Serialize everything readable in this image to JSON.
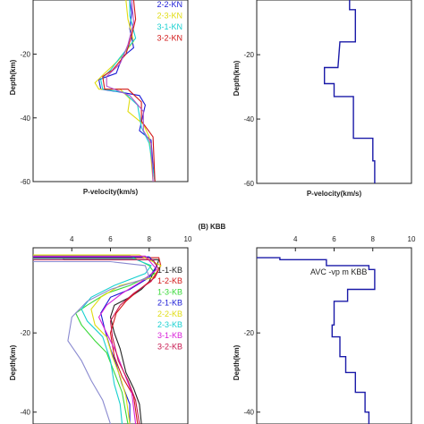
{
  "section_label": "(B) KBB",
  "chart_data": [
    {
      "type": "line",
      "panel": "top-left",
      "xlabel": "P-velocity(km/s)",
      "ylabel": "Depth(km)",
      "ylim": [
        -60,
        -3
      ],
      "xlim": [
        2,
        10
      ],
      "y_ticks": [
        "-20",
        "-40",
        "-60"
      ],
      "legend": [
        "2-2-KN",
        "2-3-KN",
        "3-1-KN",
        "3-2-KN"
      ],
      "series": [
        {
          "name": "2-2-KN",
          "color": "#1a1ad6",
          "points": [
            [
              7.0,
              -3
            ],
            [
              7.1,
              -7
            ],
            [
              7.0,
              -12
            ],
            [
              7.2,
              -18
            ],
            [
              6.6,
              -21
            ],
            [
              6.3,
              -26
            ],
            [
              5.4,
              -28
            ],
            [
              5.5,
              -31
            ],
            [
              6.6,
              -32
            ],
            [
              7.5,
              -33
            ],
            [
              7.8,
              -36
            ],
            [
              7.5,
              -44
            ],
            [
              8.1,
              -47
            ],
            [
              8.2,
              -55
            ],
            [
              8.3,
              -60
            ]
          ]
        },
        {
          "name": "2-3-KN",
          "color": "#e0dc10",
          "points": [
            [
              6.8,
              -3
            ],
            [
              6.9,
              -9
            ],
            [
              7.2,
              -16
            ],
            [
              6.4,
              -22
            ],
            [
              5.7,
              -26
            ],
            [
              5.2,
              -29
            ],
            [
              5.4,
              -31
            ],
            [
              6.5,
              -31
            ],
            [
              7.0,
              -34
            ],
            [
              6.9,
              -38
            ],
            [
              7.7,
              -42
            ],
            [
              8.0,
              -46
            ],
            [
              8.2,
              -60
            ]
          ]
        },
        {
          "name": "3-1-KN",
          "color": "#18d0d0",
          "points": [
            [
              7.0,
              -3
            ],
            [
              7.0,
              -8
            ],
            [
              7.3,
              -15
            ],
            [
              6.5,
              -21
            ],
            [
              6.0,
              -25
            ],
            [
              5.5,
              -28
            ],
            [
              5.6,
              -31
            ],
            [
              6.7,
              -32
            ],
            [
              7.4,
              -36
            ],
            [
              7.6,
              -43
            ],
            [
              8.0,
              -48
            ],
            [
              8.3,
              -60
            ]
          ]
        },
        {
          "name": "3-2-KN",
          "color": "#d21818",
          "points": [
            [
              7.2,
              -3
            ],
            [
              7.3,
              -9
            ],
            [
              7.1,
              -14
            ],
            [
              6.8,
              -20
            ],
            [
              6.1,
              -25
            ],
            [
              5.6,
              -27
            ],
            [
              5.7,
              -31
            ],
            [
              6.9,
              -31
            ],
            [
              7.6,
              -35
            ],
            [
              7.6,
              -41
            ],
            [
              8.2,
              -46
            ],
            [
              8.3,
              -60
            ]
          ]
        },
        {
          "name": "",
          "color": "#b050c8",
          "points": [
            [
              7.1,
              -3
            ],
            [
              7.2,
              -10
            ],
            [
              6.9,
              -17
            ],
            [
              6.5,
              -23
            ],
            [
              5.8,
              -27
            ],
            [
              5.8,
              -30
            ],
            [
              7.0,
              -33
            ],
            [
              7.7,
              -38
            ],
            [
              7.7,
              -44
            ],
            [
              8.1,
              -48
            ],
            [
              8.2,
              -60
            ]
          ]
        }
      ]
    },
    {
      "type": "line",
      "panel": "top-right",
      "xlabel": "P-velocity(km/s)",
      "ylabel": "Depth(km)",
      "ylim": [
        -60,
        -3
      ],
      "xlim": [
        2,
        10
      ],
      "y_ticks": [
        "-20",
        "-40",
        "-60"
      ],
      "series": [
        {
          "name": "",
          "color": "#1a1aa8",
          "points": [
            [
              6.8,
              -3
            ],
            [
              6.8,
              -6
            ],
            [
              7.1,
              -6
            ],
            [
              7.1,
              -16
            ],
            [
              6.3,
              -16
            ],
            [
              6.2,
              -24
            ],
            [
              5.5,
              -24
            ],
            [
              5.5,
              -29
            ],
            [
              6.0,
              -29
            ],
            [
              6.0,
              -33
            ],
            [
              7.0,
              -33
            ],
            [
              7.0,
              -46
            ],
            [
              8.0,
              -46
            ],
            [
              8.0,
              -53
            ],
            [
              8.1,
              -53
            ],
            [
              8.1,
              -60
            ]
          ]
        }
      ]
    },
    {
      "type": "line",
      "panel": "bottom-left",
      "ylabel": "Depth(km)",
      "ylim": [
        -43,
        1.5
      ],
      "xlim": [
        2,
        10
      ],
      "x_ticks": [
        "4",
        "6",
        "8",
        "10"
      ],
      "y_ticks": [
        "-20",
        "-40"
      ],
      "legend": [
        "1-1-KB",
        "1-2-KB",
        "1-3-KB",
        "2-1-KB",
        "2-2-KB",
        "2-3-KB",
        "3-1-KB",
        "3-2-KB"
      ],
      "series": [
        {
          "name": "1-1-KB",
          "color": "#222222",
          "points": [
            [
              2,
              -1
            ],
            [
              3.5,
              -1
            ],
            [
              3.6,
              -1.5
            ],
            [
              8.5,
              -1.5
            ],
            [
              8.4,
              -3
            ],
            [
              8.2,
              -5
            ],
            [
              8.0,
              -7
            ],
            [
              7.6,
              -9
            ],
            [
              7.0,
              -11
            ],
            [
              6.2,
              -13
            ],
            [
              6.0,
              -16
            ],
            [
              6.2,
              -20
            ],
            [
              6.5,
              -24
            ],
            [
              6.8,
              -30
            ],
            [
              7.2,
              -34
            ],
            [
              7.5,
              -38
            ],
            [
              7.6,
              -43
            ]
          ]
        },
        {
          "name": "1-2-KB",
          "color": "#d21818",
          "points": [
            [
              2,
              -1
            ],
            [
              8.5,
              -1
            ],
            [
              8.6,
              -3
            ],
            [
              8.3,
              -6
            ],
            [
              7.5,
              -9
            ],
            [
              6.8,
              -12
            ],
            [
              6.3,
              -15
            ],
            [
              6.0,
              -20
            ],
            [
              6.2,
              -26
            ],
            [
              6.6,
              -31
            ],
            [
              7.2,
              -36
            ],
            [
              7.4,
              -43
            ]
          ]
        },
        {
          "name": "1-3-KB",
          "color": "#38d838",
          "points": [
            [
              2,
              -0.5
            ],
            [
              7.0,
              -0.5
            ],
            [
              8.0,
              -3
            ],
            [
              8.3,
              -5
            ],
            [
              7.0,
              -8
            ],
            [
              5.8,
              -10
            ],
            [
              4.8,
              -13
            ],
            [
              4.2,
              -15
            ],
            [
              4.5,
              -18
            ],
            [
              5.2,
              -22
            ],
            [
              5.8,
              -25
            ],
            [
              6.2,
              -30
            ],
            [
              6.6,
              -35
            ],
            [
              6.9,
              -43
            ]
          ]
        },
        {
          "name": "2-1-KB",
          "color": "#1a1ad6",
          "points": [
            [
              2,
              -0.8
            ],
            [
              8.0,
              -0.8
            ],
            [
              8.4,
              -3
            ],
            [
              8.0,
              -6
            ],
            [
              7.0,
              -9
            ],
            [
              6.0,
              -11
            ],
            [
              5.5,
              -15
            ],
            [
              5.7,
              -19
            ],
            [
              6.0,
              -24
            ],
            [
              6.3,
              -28
            ],
            [
              6.6,
              -33
            ],
            [
              7.0,
              -38
            ],
            [
              7.0,
              -43
            ]
          ]
        },
        {
          "name": "2-2-KB",
          "color": "#e0dc10",
          "points": [
            [
              2,
              -0.3
            ],
            [
              7.5,
              -0.3
            ],
            [
              8.6,
              -3
            ],
            [
              8.2,
              -6
            ],
            [
              6.5,
              -8
            ],
            [
              5.5,
              -11
            ],
            [
              5.0,
              -14
            ],
            [
              5.2,
              -18
            ],
            [
              5.8,
              -21
            ],
            [
              6.1,
              -26
            ],
            [
              6.5,
              -31
            ],
            [
              6.8,
              -36
            ],
            [
              7.0,
              -43
            ]
          ]
        },
        {
          "name": "2-3-KB",
          "color": "#18d0d0",
          "points": [
            [
              2,
              -1.2
            ],
            [
              7.2,
              -1.2
            ],
            [
              8.1,
              -3
            ],
            [
              7.8,
              -5
            ],
            [
              6.2,
              -8
            ],
            [
              5.0,
              -11
            ],
            [
              4.5,
              -14
            ],
            [
              4.8,
              -17
            ],
            [
              5.6,
              -21
            ],
            [
              6.0,
              -27
            ],
            [
              6.2,
              -33
            ],
            [
              6.5,
              -38
            ],
            [
              6.6,
              -43
            ]
          ]
        },
        {
          "name": "3-1-KB",
          "color": "#d820d8",
          "points": [
            [
              2,
              -0.6
            ],
            [
              7.8,
              -0.6
            ],
            [
              8.4,
              -4
            ],
            [
              7.6,
              -7
            ],
            [
              6.6,
              -10
            ],
            [
              5.8,
              -13
            ],
            [
              5.4,
              -16
            ],
            [
              5.8,
              -20
            ],
            [
              6.3,
              -25
            ],
            [
              6.7,
              -30
            ],
            [
              7.1,
              -35
            ],
            [
              7.3,
              -43
            ]
          ]
        },
        {
          "name": "3-2-KB",
          "color": "#c81850",
          "points": [
            [
              2,
              -1.5
            ],
            [
              8.2,
              -1.5
            ],
            [
              8.5,
              -4
            ],
            [
              8.1,
              -7
            ],
            [
              7.2,
              -10
            ],
            [
              6.5,
              -13
            ],
            [
              6.0,
              -17
            ],
            [
              6.1,
              -21
            ],
            [
              6.4,
              -27
            ],
            [
              6.9,
              -32
            ],
            [
              7.3,
              -37
            ],
            [
              7.5,
              -43
            ]
          ]
        },
        {
          "name": "",
          "color": "#8a8ad0",
          "points": [
            [
              2,
              -2
            ],
            [
              6.0,
              -2
            ],
            [
              7.8,
              -3
            ],
            [
              8.0,
              -6
            ],
            [
              6.0,
              -9
            ],
            [
              4.8,
              -12
            ],
            [
              4.0,
              -16
            ],
            [
              3.8,
              -22
            ],
            [
              4.5,
              -27
            ],
            [
              5.0,
              -32
            ],
            [
              5.6,
              -37
            ],
            [
              6.0,
              -43
            ]
          ]
        }
      ]
    },
    {
      "type": "line",
      "panel": "bottom-right",
      "ylabel": "Depth(km)",
      "ylim": [
        -43,
        1.5
      ],
      "xlim": [
        2,
        10
      ],
      "x_ticks": [
        "4",
        "6",
        "8",
        "10"
      ],
      "y_ticks": [
        "-20",
        "-40"
      ],
      "annotation": "AVC  -vp  m    KBB",
      "series": [
        {
          "name": "",
          "color": "#1a1aa8",
          "points": [
            [
              2,
              -1
            ],
            [
              3.2,
              -1
            ],
            [
              3.2,
              -1.5
            ],
            [
              5.6,
              -1.5
            ],
            [
              5.6,
              -3
            ],
            [
              7.8,
              -3
            ],
            [
              7.8,
              -4
            ],
            [
              8.1,
              -4
            ],
            [
              8.1,
              -9
            ],
            [
              6.7,
              -9
            ],
            [
              6.7,
              -12
            ],
            [
              6.0,
              -12
            ],
            [
              6.0,
              -18
            ],
            [
              5.9,
              -18
            ],
            [
              5.9,
              -21
            ],
            [
              6.3,
              -21
            ],
            [
              6.3,
              -26
            ],
            [
              6.6,
              -26
            ],
            [
              6.6,
              -30
            ],
            [
              7.1,
              -30
            ],
            [
              7.1,
              -35
            ],
            [
              7.6,
              -35
            ],
            [
              7.6,
              -40
            ],
            [
              7.8,
              -40
            ],
            [
              7.8,
              -43
            ]
          ]
        }
      ]
    }
  ]
}
